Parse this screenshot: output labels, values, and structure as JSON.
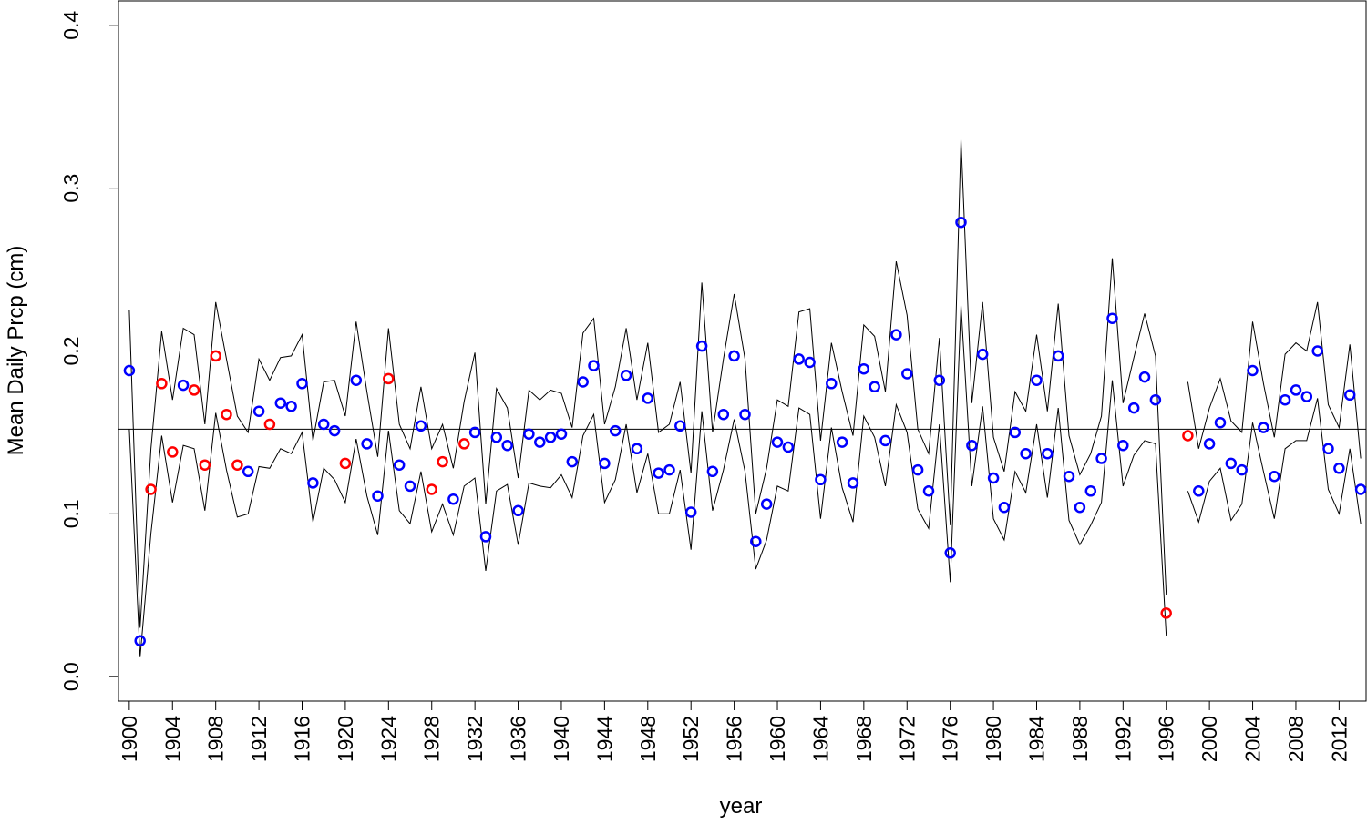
{
  "chart_data": {
    "type": "line",
    "title": "",
    "xlabel": "year",
    "ylabel": "Mean Daily Prcp (cm)",
    "xlim": [
      1899,
      2014.5
    ],
    "ylim": [
      -0.015,
      0.415
    ],
    "yticks": [
      0.0,
      0.1,
      0.2,
      0.3,
      0.4
    ],
    "ytick_labels": [
      "0.0",
      "0.1",
      "0.2",
      "0.3",
      "0.4"
    ],
    "xticks": [
      1900,
      1904,
      1908,
      1912,
      1916,
      1920,
      1924,
      1928,
      1932,
      1936,
      1940,
      1944,
      1948,
      1952,
      1956,
      1960,
      1964,
      1968,
      1972,
      1976,
      1980,
      1984,
      1988,
      1992,
      1996,
      2000,
      2004,
      2008,
      2012
    ],
    "xtick_labels": [
      "1900",
      "1904",
      "1908",
      "1912",
      "1916",
      "1920",
      "1924",
      "1928",
      "1932",
      "1936",
      "1940",
      "1944",
      "1948",
      "1952",
      "1956",
      "1960",
      "1964",
      "1968",
      "1972",
      "1976",
      "1980",
      "1984",
      "1988",
      "1992",
      "1996",
      "2000",
      "2004",
      "2008",
      "2012"
    ],
    "hline": 0.152,
    "grid": false,
    "colors": {
      "blue": "#0000ff",
      "red": "#ff0000",
      "line": "#000000"
    },
    "x": [
      1900,
      1901,
      1902,
      1903,
      1904,
      1905,
      1906,
      1907,
      1908,
      1909,
      1910,
      1911,
      1912,
      1913,
      1914,
      1915,
      1916,
      1917,
      1918,
      1919,
      1920,
      1921,
      1922,
      1923,
      1924,
      1925,
      1926,
      1927,
      1928,
      1929,
      1930,
      1931,
      1932,
      1933,
      1934,
      1935,
      1936,
      1937,
      1938,
      1939,
      1940,
      1941,
      1942,
      1943,
      1944,
      1945,
      1946,
      1947,
      1948,
      1949,
      1950,
      1951,
      1952,
      1953,
      1954,
      1955,
      1956,
      1957,
      1958,
      1959,
      1960,
      1961,
      1962,
      1963,
      1964,
      1965,
      1966,
      1967,
      1968,
      1969,
      1970,
      1971,
      1972,
      1973,
      1974,
      1975,
      1976,
      1977,
      1978,
      1979,
      1980,
      1981,
      1982,
      1983,
      1984,
      1985,
      1986,
      1987,
      1988,
      1989,
      1990,
      1991,
      1992,
      1993,
      1994,
      1995,
      1996,
      1997,
      1998,
      1999,
      2000,
      2001,
      2002,
      2003,
      2004,
      2005,
      2006,
      2007,
      2008,
      2009,
      2010,
      2011,
      2012,
      2013,
      2014
    ],
    "mean": [
      0.188,
      0.022,
      0.115,
      0.18,
      0.138,
      0.179,
      0.176,
      0.13,
      0.197,
      0.161,
      0.13,
      0.126,
      0.163,
      0.155,
      0.168,
      0.166,
      0.18,
      0.119,
      0.155,
      0.151,
      0.131,
      0.182,
      0.143,
      0.111,
      0.183,
      0.13,
      0.117,
      0.154,
      0.115,
      0.132,
      0.109,
      0.143,
      0.15,
      0.086,
      0.147,
      0.142,
      0.102,
      0.149,
      0.144,
      0.147,
      0.149,
      0.132,
      0.181,
      0.191,
      0.131,
      0.151,
      0.185,
      0.14,
      0.171,
      0.125,
      0.127,
      0.154,
      0.101,
      0.203,
      0.126,
      0.161,
      0.197,
      0.161,
      0.083,
      0.106,
      0.144,
      0.141,
      0.195,
      0.193,
      0.121,
      0.18,
      0.144,
      0.119,
      0.189,
      0.178,
      0.145,
      0.21,
      0.186,
      0.127,
      0.114,
      0.182,
      0.076,
      0.279,
      0.142,
      0.198,
      0.122,
      0.104,
      0.15,
      0.137,
      0.182,
      0.137,
      0.197,
      0.123,
      0.104,
      0.114,
      0.134,
      0.22,
      0.142,
      0.165,
      0.184,
      0.17,
      0.039,
      null,
      0.148,
      0.114,
      0.143,
      0.156,
      0.131,
      0.127,
      0.188,
      0.153,
      0.123,
      0.17,
      0.176,
      0.172,
      0.2,
      0.14,
      0.128,
      0.173,
      0.115
    ],
    "point_color": [
      "blue",
      "blue",
      "red",
      "red",
      "red",
      "blue",
      "red",
      "red",
      "red",
      "red",
      "red",
      "blue",
      "blue",
      "red",
      "blue",
      "blue",
      "blue",
      "blue",
      "blue",
      "blue",
      "red",
      "blue",
      "blue",
      "blue",
      "red",
      "blue",
      "blue",
      "blue",
      "red",
      "red",
      "blue",
      "red",
      "blue",
      "blue",
      "blue",
      "blue",
      "blue",
      "blue",
      "blue",
      "blue",
      "blue",
      "blue",
      "blue",
      "blue",
      "blue",
      "blue",
      "blue",
      "blue",
      "blue",
      "blue",
      "blue",
      "blue",
      "blue",
      "blue",
      "blue",
      "blue",
      "blue",
      "blue",
      "blue",
      "blue",
      "blue",
      "blue",
      "blue",
      "blue",
      "blue",
      "blue",
      "blue",
      "blue",
      "blue",
      "blue",
      "blue",
      "blue",
      "blue",
      "blue",
      "blue",
      "blue",
      "blue",
      "blue",
      "blue",
      "blue",
      "blue",
      "blue",
      "blue",
      "blue",
      "blue",
      "blue",
      "blue",
      "blue",
      "blue",
      "blue",
      "blue",
      "blue",
      "blue",
      "blue",
      "blue",
      "blue",
      "red",
      null,
      "red",
      "blue",
      "blue",
      "blue",
      "blue",
      "blue",
      "blue",
      "blue",
      "blue",
      "blue",
      "blue",
      "blue",
      "blue",
      "blue",
      "blue",
      "blue",
      "blue"
    ],
    "upper": [
      0.225,
      0.03,
      0.14,
      0.212,
      0.17,
      0.214,
      0.21,
      0.155,
      0.23,
      0.195,
      0.16,
      0.15,
      0.195,
      0.182,
      0.196,
      0.197,
      0.21,
      0.145,
      0.181,
      0.182,
      0.16,
      0.218,
      0.175,
      0.135,
      0.214,
      0.155,
      0.14,
      0.178,
      0.14,
      0.155,
      0.128,
      0.169,
      0.199,
      0.106,
      0.177,
      0.165,
      0.122,
      0.176,
      0.17,
      0.176,
      0.174,
      0.153,
      0.211,
      0.22,
      0.155,
      0.178,
      0.214,
      0.17,
      0.205,
      0.15,
      0.155,
      0.181,
      0.125,
      0.242,
      0.15,
      0.195,
      0.235,
      0.195,
      0.1,
      0.128,
      0.17,
      0.166,
      0.224,
      0.226,
      0.145,
      0.205,
      0.175,
      0.148,
      0.216,
      0.209,
      0.175,
      0.255,
      0.222,
      0.152,
      0.137,
      0.208,
      0.093,
      0.33,
      0.168,
      0.23,
      0.147,
      0.126,
      0.175,
      0.163,
      0.21,
      0.163,
      0.229,
      0.148,
      0.124,
      0.137,
      0.16,
      0.257,
      0.168,
      0.196,
      0.223,
      0.197,
      0.05,
      null,
      0.181,
      0.14,
      0.165,
      0.183,
      0.157,
      0.15,
      0.218,
      0.18,
      0.147,
      0.198,
      0.205,
      0.2,
      0.23,
      0.167,
      0.153,
      0.204,
      0.134
    ],
    "lower": [
      0.152,
      0.012,
      0.088,
      0.148,
      0.107,
      0.142,
      0.14,
      0.102,
      0.162,
      0.127,
      0.098,
      0.1,
      0.129,
      0.128,
      0.14,
      0.137,
      0.15,
      0.095,
      0.128,
      0.121,
      0.107,
      0.146,
      0.111,
      0.087,
      0.151,
      0.102,
      0.094,
      0.126,
      0.089,
      0.106,
      0.087,
      0.117,
      0.122,
      0.065,
      0.114,
      0.118,
      0.081,
      0.119,
      0.117,
      0.116,
      0.124,
      0.11,
      0.148,
      0.161,
      0.107,
      0.121,
      0.155,
      0.113,
      0.137,
      0.1,
      0.1,
      0.127,
      0.078,
      0.163,
      0.102,
      0.127,
      0.158,
      0.126,
      0.066,
      0.084,
      0.117,
      0.114,
      0.165,
      0.161,
      0.097,
      0.153,
      0.116,
      0.095,
      0.16,
      0.147,
      0.117,
      0.167,
      0.15,
      0.103,
      0.091,
      0.155,
      0.058,
      0.228,
      0.117,
      0.166,
      0.097,
      0.084,
      0.126,
      0.113,
      0.155,
      0.11,
      0.165,
      0.096,
      0.081,
      0.093,
      0.107,
      0.182,
      0.117,
      0.136,
      0.145,
      0.143,
      0.025,
      null,
      0.114,
      0.095,
      0.12,
      0.128,
      0.096,
      0.106,
      0.156,
      0.126,
      0.097,
      0.14,
      0.145,
      0.145,
      0.171,
      0.115,
      0.1,
      0.14,
      0.094
    ]
  }
}
